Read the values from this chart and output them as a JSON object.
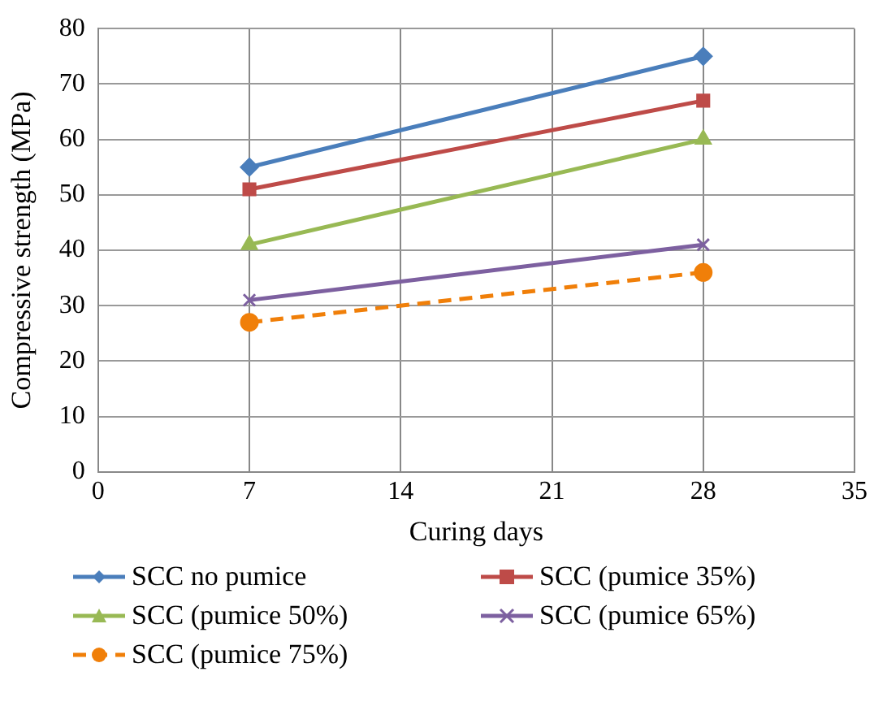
{
  "chart_data": {
    "type": "line",
    "xlabel": "Curing days",
    "ylabel": "Compressive strength (MPa)",
    "x": [
      7,
      28
    ],
    "xlim": [
      0,
      35
    ],
    "xticks": [
      0,
      7,
      14,
      21,
      28,
      35
    ],
    "ylim": [
      0,
      80
    ],
    "yticks": [
      0,
      10,
      20,
      30,
      40,
      50,
      60,
      70,
      80
    ],
    "grid": true,
    "legend": "bottom",
    "series": [
      {
        "name": "SCC no pumice",
        "color": "#4a7ebb",
        "marker": "diamond",
        "line_style": "solid",
        "values": [
          55,
          75
        ]
      },
      {
        "name": "SCC (pumice 35%)",
        "color": "#be4b48",
        "marker": "square",
        "line_style": "solid",
        "values": [
          51,
          67
        ]
      },
      {
        "name": "SCC (pumice 50%)",
        "color": "#98b954",
        "marker": "triangle",
        "line_style": "solid",
        "values": [
          41,
          60
        ]
      },
      {
        "name": "SCC (pumice 65%)",
        "color": "#7d60a0",
        "marker": "cross",
        "line_style": "solid",
        "values": [
          31,
          41
        ]
      },
      {
        "name": "SCC (pumice 75%)",
        "color": "#f07f09",
        "marker": "circle",
        "line_style": "dashed",
        "values": [
          27,
          36
        ]
      }
    ]
  }
}
